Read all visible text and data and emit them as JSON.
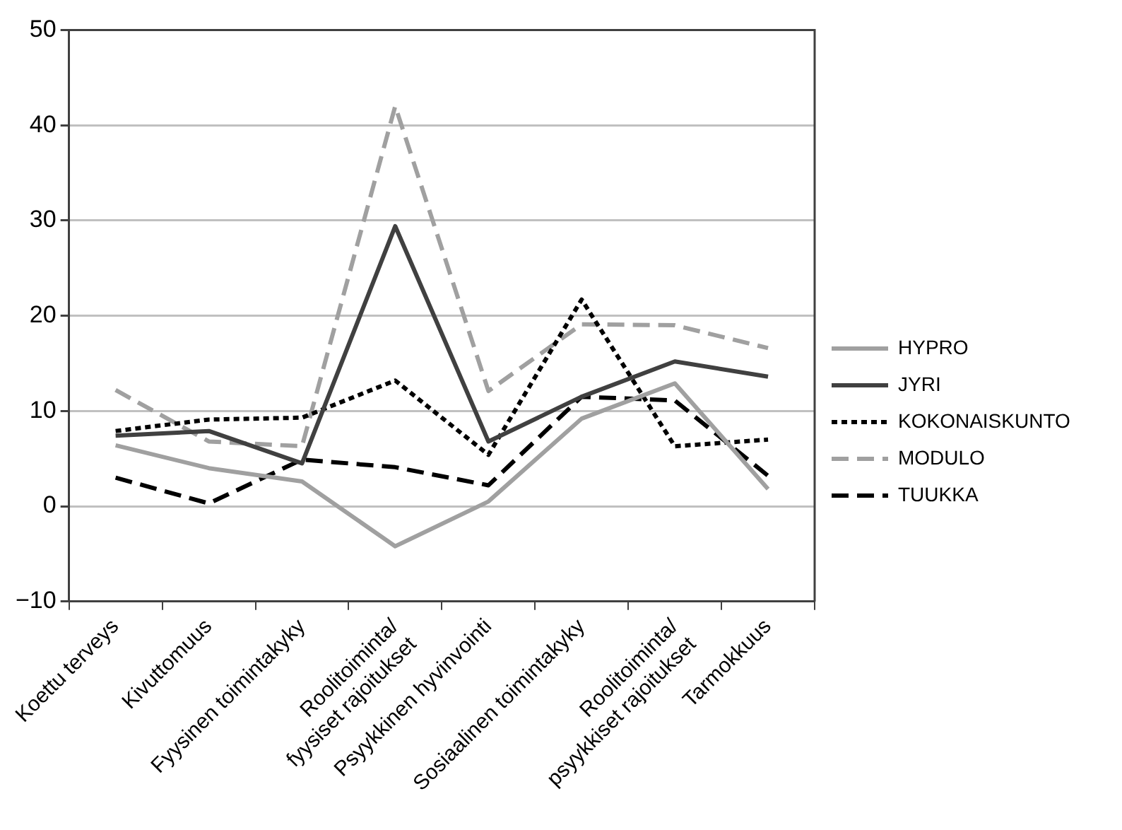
{
  "chart_data": {
    "type": "line",
    "categories": [
      "Koettu terveys",
      "Kivuttomuus",
      "Fyysinen toimintakyky",
      "Roolitoiminta/\nfyysiset rajoitukset",
      "Psyykkinen hyvinvointi",
      "Sosiaalinen toimintakyky",
      "Roolitoiminta/\npsyykkiset rajoitukset",
      "Tarmokkuus"
    ],
    "series": [
      {
        "name": "HYPRO",
        "color": "#a0a0a0",
        "line_style": "solid",
        "values": [
          6.4,
          4.0,
          2.6,
          -4.2,
          0.5,
          9.2,
          12.9,
          1.8
        ]
      },
      {
        "name": "JYRI",
        "color": "#404040",
        "line_style": "solid",
        "values": [
          7.4,
          7.9,
          4.5,
          29.4,
          6.8,
          11.5,
          15.2,
          13.6
        ]
      },
      {
        "name": "KOKONAISKUNTO",
        "color": "#000000",
        "line_style": "dotted",
        "values": [
          7.9,
          9.1,
          9.3,
          13.2,
          5.4,
          21.7,
          6.3,
          7.0
        ]
      },
      {
        "name": "MODULO",
        "color": "#a0a0a0",
        "line_style": "dashed",
        "values": [
          12.2,
          6.8,
          6.3,
          42.0,
          12.1,
          19.1,
          19.0,
          16.6
        ]
      },
      {
        "name": "TUUKKA",
        "color": "#000000",
        "line_style": "dashed",
        "values": [
          3.0,
          0.3,
          4.9,
          4.1,
          2.2,
          11.5,
          11.1,
          3.2
        ]
      }
    ],
    "ylim": [
      -10,
      50
    ],
    "yticks": [
      {
        "value": -10,
        "label": "−10"
      },
      0,
      10,
      20,
      30,
      40,
      50
    ],
    "grid": "y",
    "legend": "right",
    "marker": "none"
  }
}
